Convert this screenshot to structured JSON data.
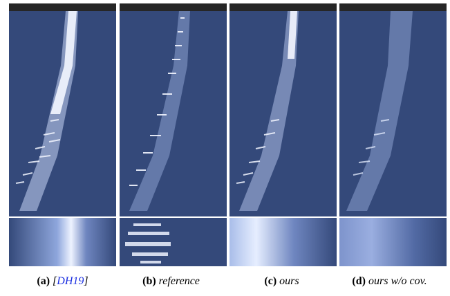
{
  "figure": {
    "panels": [
      {
        "id": "a",
        "label": "(a)",
        "text_before": "[",
        "citation": "DH19",
        "text_after": "]"
      },
      {
        "id": "b",
        "label": "(b)",
        "text": "reference"
      },
      {
        "id": "c",
        "label": "(c)",
        "text": "ours"
      },
      {
        "id": "d",
        "label": "(d)",
        "text": "ours w/o cov."
      }
    ],
    "colors": {
      "ocean": "#34497a",
      "ocean_dark": "#2c3f6c",
      "highlight": "#e6eeff",
      "sky_strip": "#262626",
      "citation": "#1a2ee0"
    }
  }
}
